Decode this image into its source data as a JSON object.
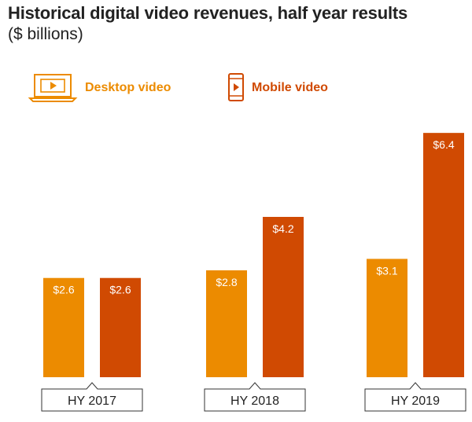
{
  "title": "Historical digital video revenues, half year results",
  "subtitle": "($ billions)",
  "colors": {
    "desktop": "#EC8B00",
    "mobile": "#D04A02",
    "text": "#222222"
  },
  "legend": [
    {
      "label": "Desktop video",
      "icon": "laptop-play-icon",
      "color": "#EC8B00"
    },
    {
      "label": "Mobile video",
      "icon": "phone-play-icon",
      "color": "#D04A02"
    }
  ],
  "chart_data": {
    "type": "bar",
    "title": "Historical digital video revenues, half year results",
    "subtitle": "($ billions)",
    "categories": [
      "HY 2017",
      "HY 2018",
      "HY 2019"
    ],
    "series": [
      {
        "name": "Desktop video",
        "values": [
          2.6,
          2.8,
          3.1
        ],
        "labels": [
          "$2.6",
          "$2.8",
          "$3.1"
        ],
        "color": "#EC8B00"
      },
      {
        "name": "Mobile video",
        "values": [
          2.6,
          4.2,
          6.4
        ],
        "labels": [
          "$2.6",
          "$4.2",
          "$6.4"
        ],
        "color": "#D04A02"
      }
    ],
    "ylim": [
      0,
      7
    ],
    "grid": false,
    "legend_position": "top-left"
  }
}
